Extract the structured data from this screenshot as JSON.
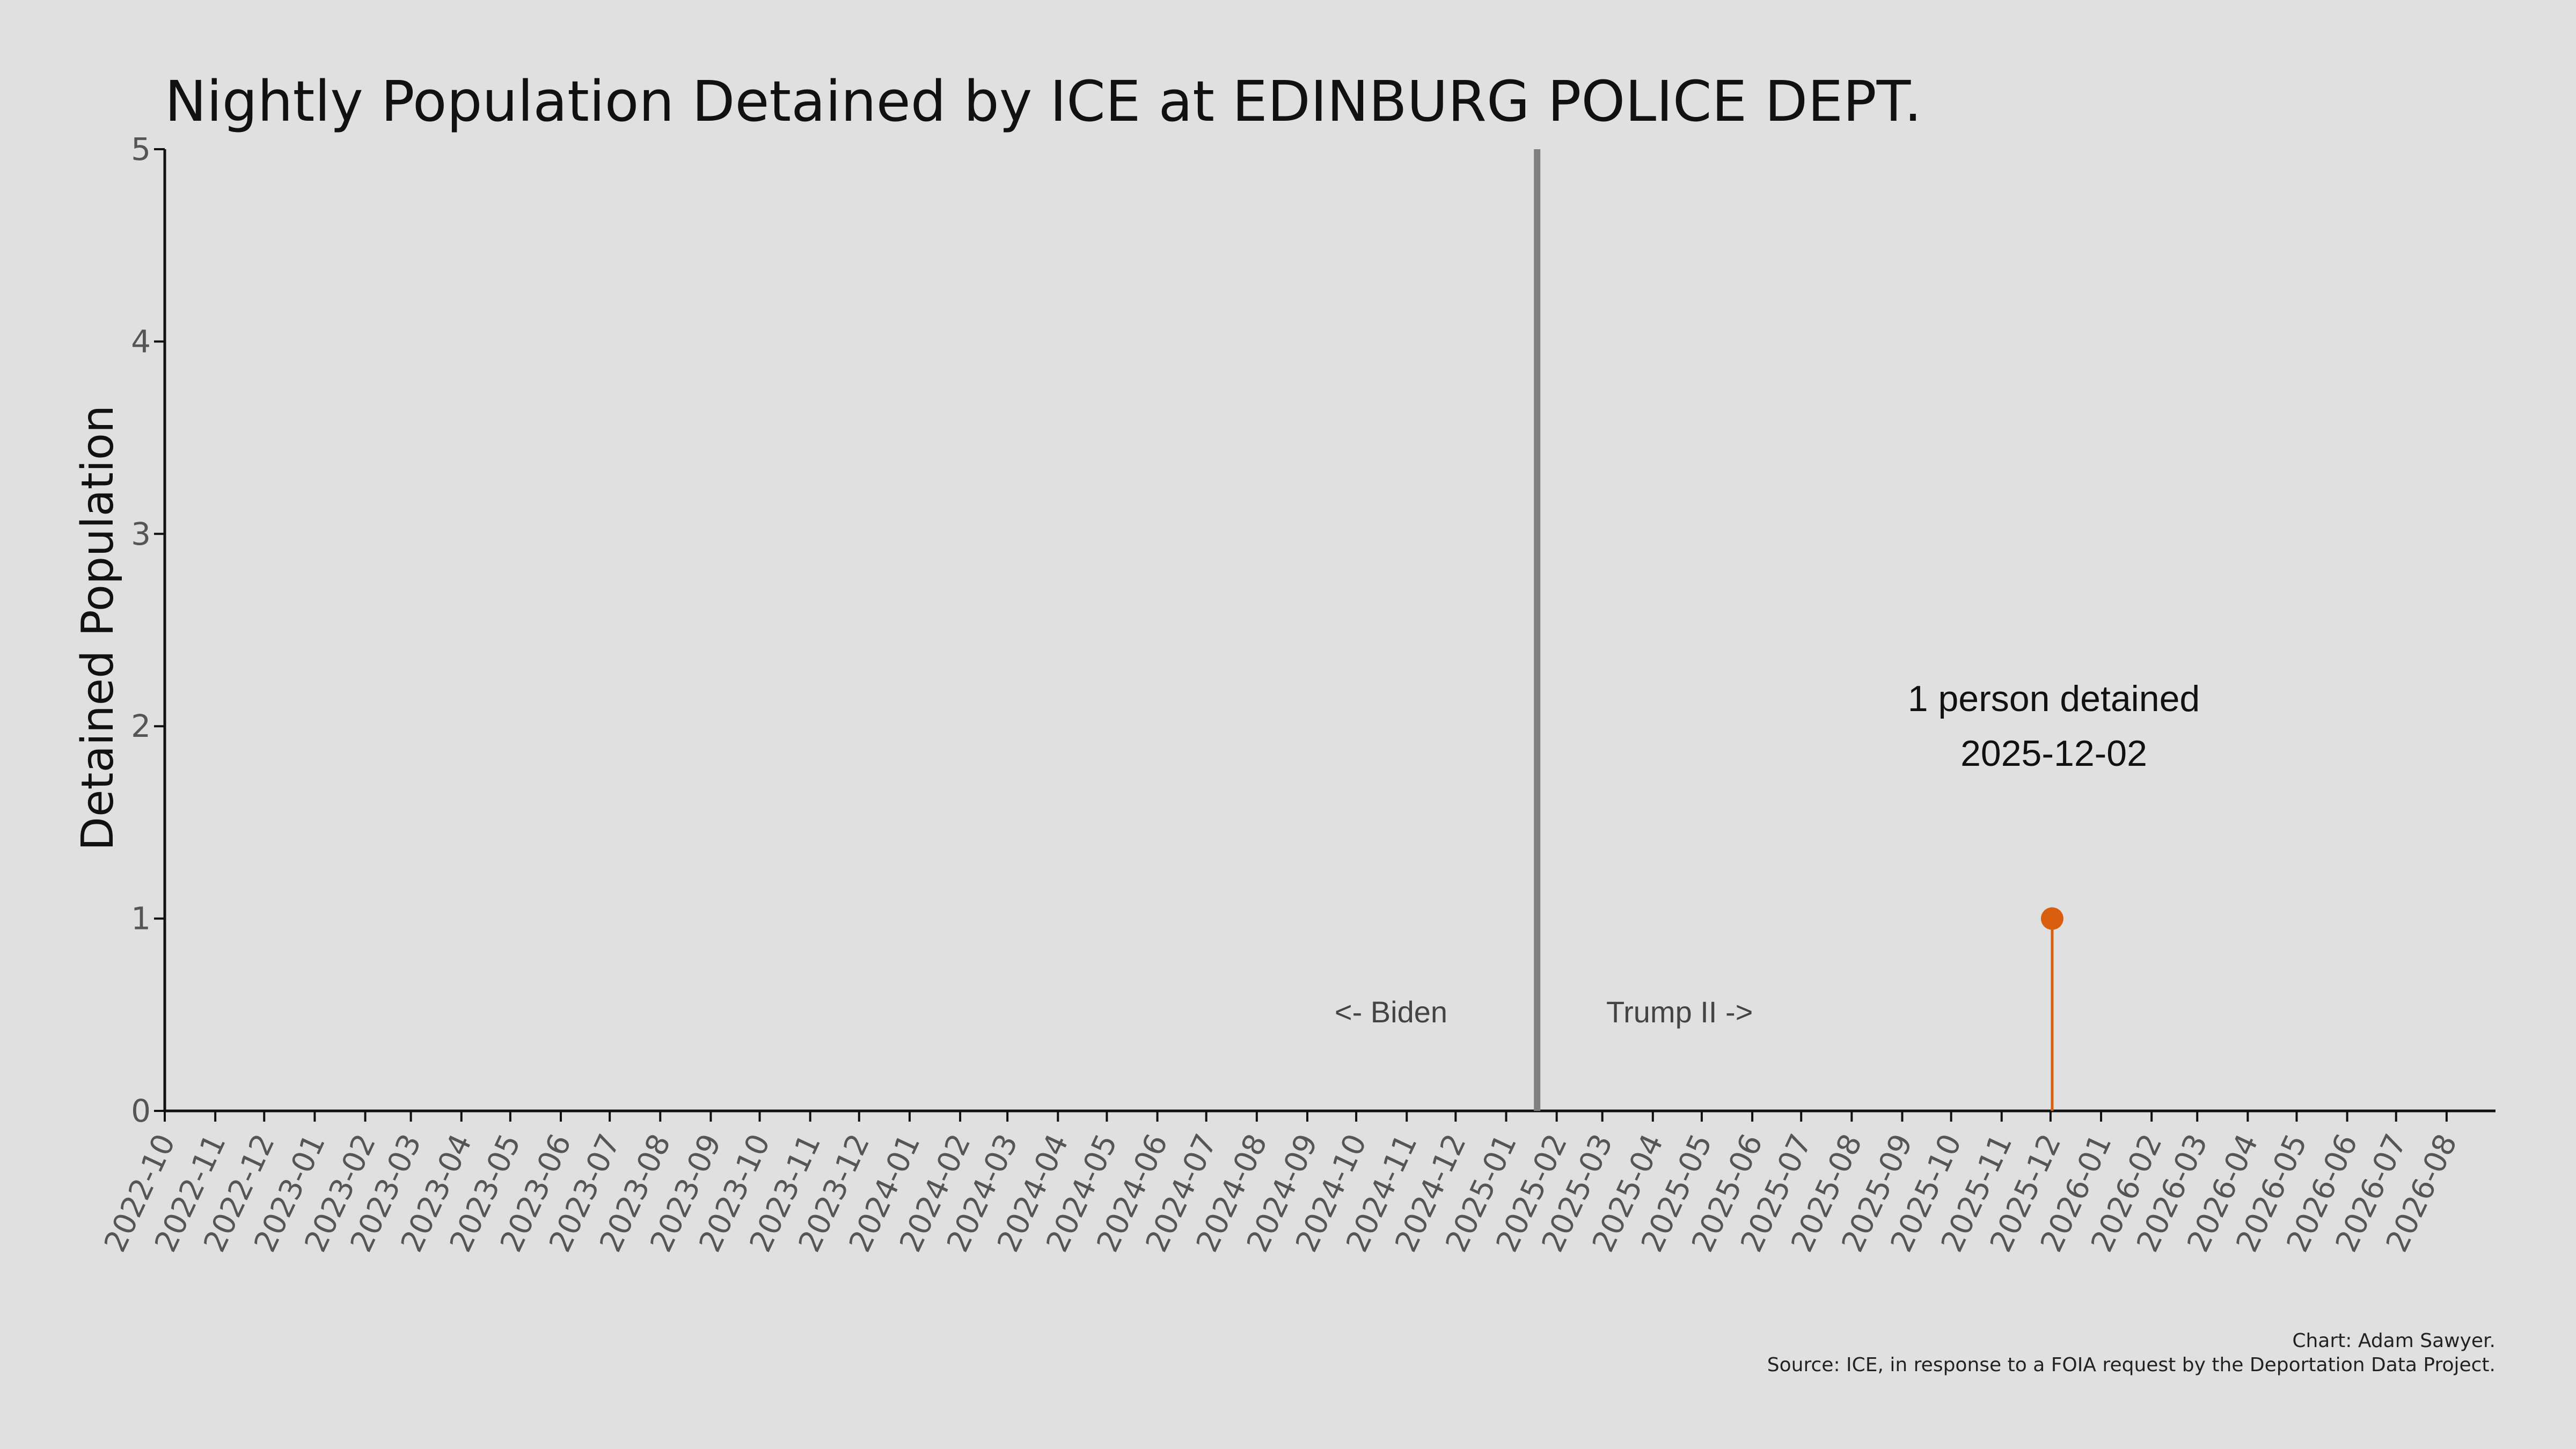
{
  "chart_data": {
    "type": "line",
    "title": "Nightly Population Detained by ICE at EDINBURG POLICE DEPT.",
    "xlabel": "",
    "ylabel": "Detained Population",
    "xlim": [
      "2022-10-01",
      "2026-08-31"
    ],
    "ylim": [
      0,
      5
    ],
    "y_ticks": [
      0,
      1,
      2,
      3,
      4,
      5
    ],
    "x_tick_labels": [
      "2022-10",
      "2022-11",
      "2022-12",
      "2023-01",
      "2023-02",
      "2023-03",
      "2023-04",
      "2023-05",
      "2023-06",
      "2023-07",
      "2023-08",
      "2023-09",
      "2023-10",
      "2023-11",
      "2023-12",
      "2024-01",
      "2024-02",
      "2024-03",
      "2024-04",
      "2024-05",
      "2024-06",
      "2024-07",
      "2024-08",
      "2024-09",
      "2024-10",
      "2024-11",
      "2024-12",
      "2025-01",
      "2025-02",
      "2025-03",
      "2025-04",
      "2025-05",
      "2025-06",
      "2025-07",
      "2025-08",
      "2025-09",
      "2025-10",
      "2025-11",
      "2025-12",
      "2026-01",
      "2026-02",
      "2026-03",
      "2026-04",
      "2026-05",
      "2026-06",
      "2026-07",
      "2026-08"
    ],
    "grid": false,
    "series": [
      {
        "points": [
          {
            "x": "2025-12-02",
            "y": 1
          }
        ],
        "color": "#d95f0e"
      }
    ],
    "reference_line": {
      "x": "2025-01-20",
      "color": "#808080"
    },
    "era_labels": {
      "left": "<- Biden",
      "right": "Trump II ->"
    },
    "annotation": {
      "line1": "1 person detained",
      "line2": "2025-12-02",
      "x": "2025-12-02"
    }
  },
  "credits": {
    "line1": "Chart: Adam Sawyer.",
    "line2": "Source: ICE, in response to a FOIA request by the Deportation Data Project."
  }
}
